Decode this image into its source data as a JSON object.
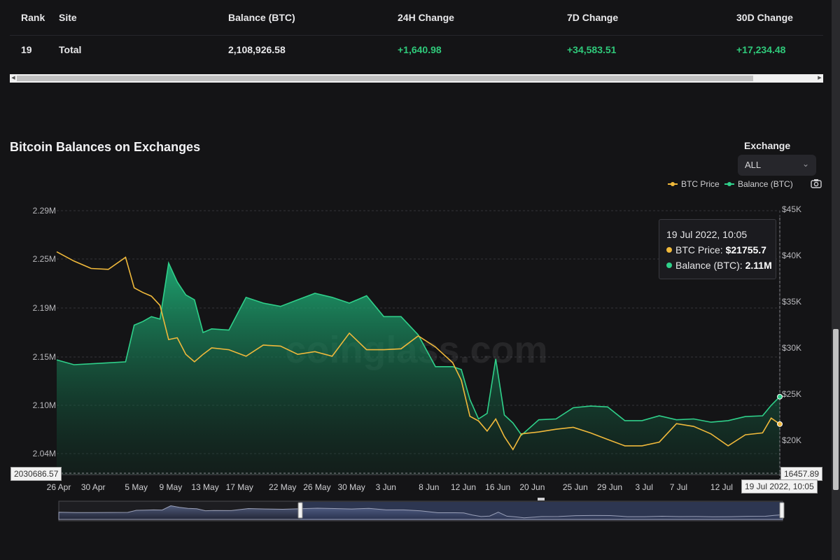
{
  "table": {
    "headers": [
      "Rank",
      "Site",
      "Balance (BTC)",
      "24H Change",
      "7D Change",
      "30D Change"
    ],
    "row": {
      "rank": "19",
      "site": "Total",
      "balance": "2,108,926.58",
      "change_24h": "+1,640.98",
      "change_7d": "+34,583.51",
      "change_30d": "+17,234.48"
    }
  },
  "colors": {
    "btc_price": "#f0b93b",
    "balance": "#2fd08a",
    "positive": "#2fc97a"
  },
  "filter": {
    "label": "Exchange",
    "value": "ALL"
  },
  "chart_data": {
    "type": "line",
    "title": "Bitcoin Balances on Exchanges",
    "watermark": "coinglass.com",
    "x_tick_labels": [
      "26 Apr",
      "30 Apr",
      "5 May",
      "9 May",
      "13 May",
      "17 May",
      "22 May",
      "26 May",
      "30 May",
      "3 Jun",
      "8 Jun",
      "12 Jun",
      "16 Jun",
      "20 Jun",
      "25 Jun",
      "29 Jun",
      "3 Jul",
      "7 Jul",
      "12 Jul"
    ],
    "x_range": [
      "2022-04-26",
      "2022-07-19"
    ],
    "left_axis": {
      "ticks": [
        2040000,
        2100000,
        2150000,
        2190000,
        2250000,
        2290000
      ],
      "labels": [
        "2.04M",
        "2.10M",
        "2.15M",
        "2.19M",
        "2.25M",
        "2.29M"
      ],
      "cursor_label": "2030686.57"
    },
    "right_axis": {
      "ticks": [
        20000,
        25000,
        30000,
        35000,
        40000,
        45000
      ],
      "labels": [
        "$20K",
        "$25K",
        "$30K",
        "$35K",
        "$40K",
        "$45K"
      ],
      "cursor_label": "16457.89"
    },
    "cursor_x_label": "19 Jul 2022, 10:05",
    "legend": {
      "position": "top-right",
      "items": [
        "BTC Price",
        "Balance (BTC)"
      ]
    },
    "grid": true,
    "series": [
      {
        "name": "Balance (BTC)",
        "axis": "left",
        "x": [
          "2022-04-26",
          "2022-04-28",
          "2022-04-30",
          "2022-05-02",
          "2022-05-04",
          "2022-05-05",
          "2022-05-06",
          "2022-05-07",
          "2022-05-08",
          "2022-05-09",
          "2022-05-10",
          "2022-05-11",
          "2022-05-12",
          "2022-05-13",
          "2022-05-14",
          "2022-05-16",
          "2022-05-18",
          "2022-05-20",
          "2022-05-22",
          "2022-05-24",
          "2022-05-26",
          "2022-05-28",
          "2022-05-30",
          "2022-06-01",
          "2022-06-03",
          "2022-06-05",
          "2022-06-07",
          "2022-06-09",
          "2022-06-11",
          "2022-06-12",
          "2022-06-13",
          "2022-06-14",
          "2022-06-15",
          "2022-06-16",
          "2022-06-17",
          "2022-06-18",
          "2022-06-19",
          "2022-06-21",
          "2022-06-23",
          "2022-06-25",
          "2022-06-27",
          "2022-06-29",
          "2022-07-01",
          "2022-07-03",
          "2022-07-05",
          "2022-07-07",
          "2022-07-09",
          "2022-07-11",
          "2022-07-13",
          "2022-07-15",
          "2022-07-17",
          "2022-07-18",
          "2022-07-19"
        ],
        "values": [
          2147000,
          2142000,
          2143000,
          2144000,
          2145000,
          2176000,
          2179000,
          2183000,
          2181000,
          2245000,
          2222000,
          2206000,
          2200000,
          2170000,
          2173000,
          2172000,
          2203000,
          2196000,
          2192000,
          2200000,
          2208000,
          2203000,
          2196000,
          2205000,
          2183000,
          2183000,
          2168000,
          2140000,
          2140000,
          2137000,
          2106000,
          2083000,
          2090000,
          2148000,
          2088000,
          2078000,
          2063000,
          2082000,
          2083000,
          2097000,
          2099000,
          2098000,
          2081000,
          2081000,
          2087000,
          2082000,
          2083000,
          2079000,
          2081000,
          2086000,
          2087000,
          2100000,
          2108900
        ]
      },
      {
        "name": "BTC Price",
        "axis": "right",
        "x": [
          "2022-04-26",
          "2022-04-28",
          "2022-04-30",
          "2022-05-02",
          "2022-05-04",
          "2022-05-05",
          "2022-05-06",
          "2022-05-07",
          "2022-05-08",
          "2022-05-09",
          "2022-05-10",
          "2022-05-11",
          "2022-05-12",
          "2022-05-13",
          "2022-05-14",
          "2022-05-16",
          "2022-05-18",
          "2022-05-20",
          "2022-05-22",
          "2022-05-24",
          "2022-05-26",
          "2022-05-28",
          "2022-05-30",
          "2022-06-01",
          "2022-06-03",
          "2022-06-05",
          "2022-06-07",
          "2022-06-09",
          "2022-06-11",
          "2022-06-12",
          "2022-06-13",
          "2022-06-14",
          "2022-06-15",
          "2022-06-16",
          "2022-06-17",
          "2022-06-18",
          "2022-06-19",
          "2022-06-21",
          "2022-06-23",
          "2022-06-25",
          "2022-06-27",
          "2022-06-29",
          "2022-07-01",
          "2022-07-03",
          "2022-07-05",
          "2022-07-07",
          "2022-07-09",
          "2022-07-11",
          "2022-07-13",
          "2022-07-15",
          "2022-07-17",
          "2022-07-18",
          "2022-07-19"
        ],
        "values": [
          40400,
          39400,
          38600,
          38500,
          39800,
          36500,
          36000,
          35600,
          34600,
          30900,
          31100,
          29300,
          28500,
          29300,
          30000,
          29800,
          29100,
          30300,
          30200,
          29300,
          29600,
          29100,
          31600,
          29800,
          29800,
          29900,
          31300,
          30100,
          28400,
          26500,
          22600,
          22100,
          21000,
          22300,
          20400,
          19000,
          20700,
          20900,
          21200,
          21400,
          20800,
          20100,
          19400,
          19400,
          19800,
          21800,
          21500,
          20700,
          19400,
          20600,
          20800,
          22400,
          21755.7
        ]
      }
    ],
    "tooltip": {
      "time": "19 Jul 2022, 10:05",
      "btc_label": "BTC Price:",
      "btc_value": "$21755.7",
      "bal_label": "Balance (BTC):",
      "bal_value": "2.11M"
    }
  }
}
